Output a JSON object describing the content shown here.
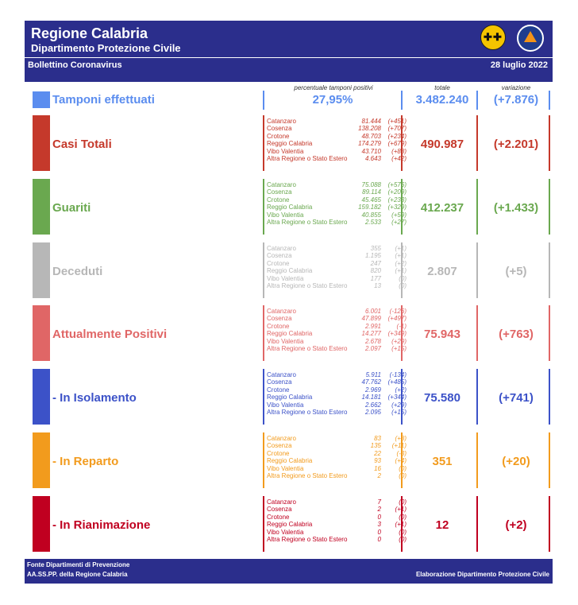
{
  "header": {
    "title": "Regione Calabria",
    "subtitle": "Dipartimento Protezione Civile",
    "bulletin": "Bollettino Coronavirus",
    "date": "28 luglio 2022"
  },
  "columns": {
    "pct": "percentuale tamponi positivi",
    "total": "totale",
    "change": "variazione"
  },
  "tamponi": {
    "label": "Tamponi effettuati",
    "pct": "27,95%",
    "total": "3.482.240",
    "change": "(+7.876)",
    "color": "#5b8def"
  },
  "rows": [
    {
      "label": "Casi Totali",
      "color": "#c5392b",
      "total": "490.987",
      "change": "(+2.201)",
      "items": [
        [
          "Catanzaro",
          "81.444",
          "(+451)"
        ],
        [
          "Cosenza",
          "138.208",
          "(+707)"
        ],
        [
          "Crotone",
          "48.703",
          "(+234)"
        ],
        [
          "Reggio Calabria",
          "174.279",
          "(+679)"
        ],
        [
          "Vibo Valentia",
          "43.710",
          "(+88)"
        ],
        [
          "Altra Regione o Stato Estero",
          "4.643",
          "(+42)"
        ]
      ]
    },
    {
      "label": "Guariti",
      "color": "#6aa84f",
      "total": "412.237",
      "change": "(+1.433)",
      "items": [
        [
          "Catanzaro",
          "75.088",
          "(+576)"
        ],
        [
          "Cosenza",
          "89.114",
          "(+209)"
        ],
        [
          "Crotone",
          "45.465",
          "(+233)"
        ],
        [
          "Reggio Calabria",
          "159.182",
          "(+329)"
        ],
        [
          "Vibo Valentia",
          "40.855",
          "(+59)"
        ],
        [
          "Altra Regione o Stato Estero",
          "2.533",
          "(+27)"
        ]
      ]
    },
    {
      "label": "Deceduti",
      "color": "#b7b7b7",
      "total": "2.807",
      "change": "(+5)",
      "items": [
        [
          "Catanzaro",
          "355",
          "(+1)"
        ],
        [
          "Cosenza",
          "1.195",
          "(+1)"
        ],
        [
          "Crotone",
          "247",
          "(+2)"
        ],
        [
          "Reggio Calabria",
          "820",
          "(+1)"
        ],
        [
          "Vibo Valentia",
          "177",
          "(0)"
        ],
        [
          "Altra Regione o Stato Estero",
          "13",
          "(0)"
        ]
      ]
    },
    {
      "label": "Attualmente Positivi",
      "color": "#e06666",
      "total": "75.943",
      "change": "(+763)",
      "items": [
        [
          "Catanzaro",
          "6.001",
          "(-126)"
        ],
        [
          "Cosenza",
          "47.899",
          "(+497)"
        ],
        [
          "Crotone",
          "2.991",
          "(-1)"
        ],
        [
          "Reggio Calabria",
          "14.277",
          "(+349)"
        ],
        [
          "Vibo Valentia",
          "2.678",
          "(+29)"
        ],
        [
          "Altra Regione o Stato Estero",
          "2.097",
          "(+15)"
        ]
      ]
    },
    {
      "label": " - In Isolamento",
      "color": "#3c52c8",
      "total": "75.580",
      "change": "(+741)",
      "items": [
        [
          "Catanzaro",
          "5.911",
          "(-134)"
        ],
        [
          "Cosenza",
          "47.762",
          "(+485)"
        ],
        [
          "Crotone",
          "2.969",
          "(+2)"
        ],
        [
          "Reggio Calabria",
          "14.181",
          "(+344)"
        ],
        [
          "Vibo Valentia",
          "2.662",
          "(+29)"
        ],
        [
          "Altra Regione o Stato Estero",
          "2.095",
          "(+15)"
        ]
      ]
    },
    {
      "label": " - In Reparto",
      "color": "#f29b1d",
      "total": "351",
      "change": "(+20)",
      "items": [
        [
          "Catanzaro",
          "83",
          "(+8)"
        ],
        [
          "Cosenza",
          "135",
          "(+11)"
        ],
        [
          "Crotone",
          "22",
          "(-3)"
        ],
        [
          "Reggio Calabria",
          "93",
          "(+4)"
        ],
        [
          "Vibo Valentia",
          "16",
          "(0)"
        ],
        [
          "Altra Regione o Stato Estero",
          "2",
          "(0)"
        ]
      ]
    },
    {
      "label": " - In Rianimazione",
      "color": "#c00020",
      "total": "12",
      "change": "(+2)",
      "items": [
        [
          "Catanzaro",
          "7",
          "(0)"
        ],
        [
          "Cosenza",
          "2",
          "(+1)"
        ],
        [
          "Crotone",
          "0",
          "(0)"
        ],
        [
          "Reggio Calabria",
          "3",
          "(+1)"
        ],
        [
          "Vibo Valentia",
          "0",
          "(0)"
        ],
        [
          "Altra Regione o Stato Estero",
          "0",
          "(0)"
        ]
      ]
    }
  ],
  "footer": {
    "line1": "Fonte Dipartimenti di Prevenzione",
    "line2": "AA.SS.PP.  della Regione Calabria",
    "right": "Elaborazione Dipartimento Protezione Civile"
  }
}
